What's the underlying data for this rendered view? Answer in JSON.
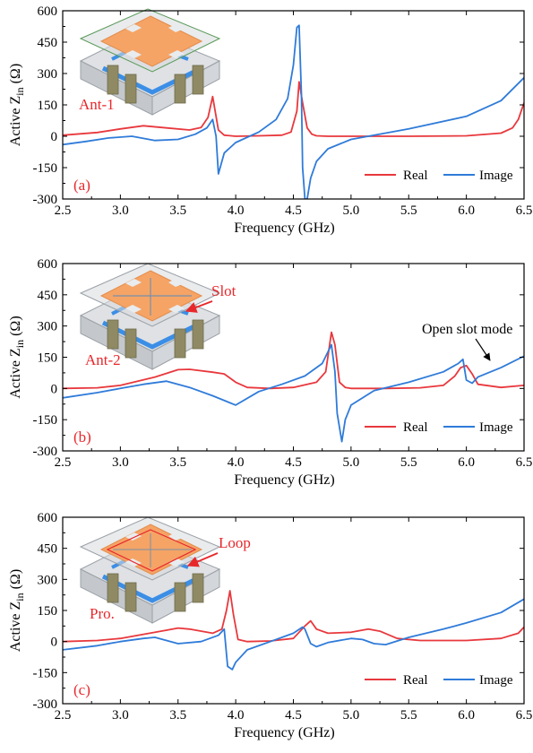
{
  "colors": {
    "real": "#e8383d",
    "image": "#2f7bd9",
    "annotation_red": "#e8272b",
    "antenna_patch": "#f5a466",
    "antenna_feed": "#3b8ee6",
    "antenna_body": "#c9cdd1"
  },
  "chart_data": [
    {
      "type": "line",
      "panel_label": "(a)",
      "antenna_label": "Ant-1",
      "xlabel": "Frequency (GHz)",
      "ylabel_main": "Active Z",
      "ylabel_sub": "in",
      "ylabel_unit": " (Ω)",
      "xlim": [
        2.5,
        6.5
      ],
      "ylim": [
        -300,
        600
      ],
      "xticks": [
        "2.5",
        "3.0",
        "3.5",
        "4.0",
        "4.5",
        "5.0",
        "5.5",
        "6.0",
        "6.5"
      ],
      "yticks": [
        "-300",
        "-150",
        "0",
        "150",
        "300",
        "450",
        "600"
      ],
      "legend": [
        "Real",
        "Image"
      ],
      "annotations": [],
      "series": [
        {
          "name": "Real",
          "color_key": "real",
          "x": [
            2.5,
            2.8,
            3.0,
            3.2,
            3.4,
            3.6,
            3.7,
            3.76,
            3.8,
            3.85,
            3.9,
            4.0,
            4.2,
            4.4,
            4.48,
            4.53,
            4.55,
            4.58,
            4.62,
            4.66,
            4.7,
            4.8,
            5.0,
            5.5,
            6.0,
            6.3,
            6.4,
            6.45,
            6.5
          ],
          "y": [
            5,
            18,
            35,
            50,
            40,
            30,
            42,
            90,
            190,
            30,
            5,
            0,
            2,
            5,
            20,
            120,
            260,
            160,
            40,
            10,
            2,
            0,
            0,
            0,
            2,
            15,
            40,
            80,
            160
          ]
        },
        {
          "name": "Image",
          "color_key": "image",
          "x": [
            2.5,
            2.7,
            2.9,
            3.1,
            3.3,
            3.5,
            3.65,
            3.75,
            3.8,
            3.83,
            3.85,
            3.9,
            4.0,
            4.2,
            4.35,
            4.45,
            4.5,
            4.53,
            4.55,
            4.57,
            4.58,
            4.6,
            4.62,
            4.65,
            4.7,
            4.8,
            5.0,
            5.5,
            6.0,
            6.3,
            6.5
          ],
          "y": [
            -40,
            -25,
            -8,
            0,
            -20,
            -15,
            10,
            40,
            80,
            0,
            -180,
            -80,
            -30,
            20,
            80,
            180,
            340,
            520,
            530,
            200,
            -150,
            -300,
            -300,
            -200,
            -120,
            -60,
            -15,
            35,
            95,
            170,
            280
          ]
        }
      ]
    },
    {
      "type": "line",
      "panel_label": "(b)",
      "antenna_label": "Ant-2",
      "xlabel": "Frequency (GHz)",
      "ylabel_main": "Active Z",
      "ylabel_sub": "in",
      "ylabel_unit": " (Ω)",
      "xlim": [
        2.5,
        6.5
      ],
      "ylim": [
        -300,
        600
      ],
      "xticks": [
        "2.5",
        "3.0",
        "3.5",
        "4.0",
        "4.5",
        "5.0",
        "5.5",
        "6.0",
        "6.5"
      ],
      "yticks": [
        "-300",
        "-150",
        "0",
        "150",
        "300",
        "450",
        "600"
      ],
      "legend": [
        "Real",
        "Image"
      ],
      "annotations": [
        "Slot",
        "Open slot mode"
      ],
      "series": [
        {
          "name": "Real",
          "color_key": "real",
          "x": [
            2.5,
            2.8,
            3.0,
            3.3,
            3.5,
            3.6,
            3.8,
            3.9,
            4.0,
            4.1,
            4.3,
            4.5,
            4.7,
            4.78,
            4.83,
            4.86,
            4.9,
            4.95,
            5.0,
            5.3,
            5.6,
            5.8,
            5.9,
            5.95,
            6.0,
            6.05,
            6.1,
            6.3,
            6.5
          ],
          "y": [
            0,
            3,
            15,
            55,
            90,
            92,
            78,
            70,
            30,
            5,
            0,
            5,
            30,
            80,
            270,
            210,
            30,
            5,
            0,
            0,
            3,
            15,
            60,
            100,
            110,
            70,
            20,
            5,
            15
          ]
        },
        {
          "name": "Image",
          "color_key": "image",
          "x": [
            2.5,
            2.8,
            3.0,
            3.2,
            3.4,
            3.6,
            3.8,
            4.0,
            4.2,
            4.4,
            4.6,
            4.75,
            4.83,
            4.86,
            4.88,
            4.92,
            4.95,
            5.0,
            5.2,
            5.5,
            5.8,
            5.93,
            5.97,
            6.0,
            6.05,
            6.1,
            6.3,
            6.5
          ],
          "y": [
            -45,
            -20,
            0,
            20,
            35,
            5,
            -35,
            -80,
            -15,
            20,
            60,
            120,
            210,
            80,
            -120,
            -255,
            -150,
            -80,
            -10,
            30,
            80,
            120,
            140,
            40,
            25,
            55,
            100,
            155
          ]
        }
      ]
    },
    {
      "type": "line",
      "panel_label": "(c)",
      "antenna_label": "Pro.",
      "xlabel": "Frequency (GHz)",
      "ylabel_main": "Active Z",
      "ylabel_sub": "in",
      "ylabel_unit": " (Ω)",
      "xlim": [
        2.5,
        6.5
      ],
      "ylim": [
        -300,
        600
      ],
      "xticks": [
        "2.5",
        "3.0",
        "3.5",
        "4.0",
        "4.5",
        "5.0",
        "5.5",
        "6.0",
        "6.5"
      ],
      "yticks": [
        "-300",
        "-150",
        "0",
        "150",
        "300",
        "450",
        "600"
      ],
      "legend": [
        "Real",
        "Image"
      ],
      "annotations": [
        "Loop"
      ],
      "series": [
        {
          "name": "Real",
          "color_key": "real",
          "x": [
            2.5,
            2.8,
            3.0,
            3.2,
            3.4,
            3.5,
            3.6,
            3.8,
            3.88,
            3.92,
            3.95,
            3.98,
            4.02,
            4.1,
            4.3,
            4.5,
            4.6,
            4.65,
            4.7,
            4.8,
            5.0,
            5.15,
            5.25,
            5.4,
            5.6,
            6.0,
            6.3,
            6.45,
            6.5
          ],
          "y": [
            0,
            5,
            15,
            35,
            55,
            65,
            60,
            40,
            60,
            150,
            245,
            130,
            10,
            0,
            3,
            15,
            75,
            100,
            60,
            40,
            45,
            60,
            50,
            15,
            5,
            5,
            15,
            40,
            70
          ]
        },
        {
          "name": "Image",
          "color_key": "image",
          "x": [
            2.5,
            2.8,
            3.0,
            3.2,
            3.3,
            3.5,
            3.7,
            3.85,
            3.9,
            3.93,
            3.97,
            4.0,
            4.1,
            4.3,
            4.5,
            4.58,
            4.6,
            4.65,
            4.7,
            4.8,
            5.0,
            5.1,
            5.2,
            5.3,
            5.5,
            5.8,
            6.0,
            6.3,
            6.5
          ],
          "y": [
            -40,
            -20,
            0,
            15,
            20,
            -10,
            0,
            30,
            60,
            -120,
            -135,
            -100,
            -40,
            0,
            40,
            70,
            60,
            -10,
            -25,
            -5,
            15,
            10,
            -10,
            -15,
            20,
            60,
            90,
            140,
            205
          ]
        }
      ]
    }
  ]
}
